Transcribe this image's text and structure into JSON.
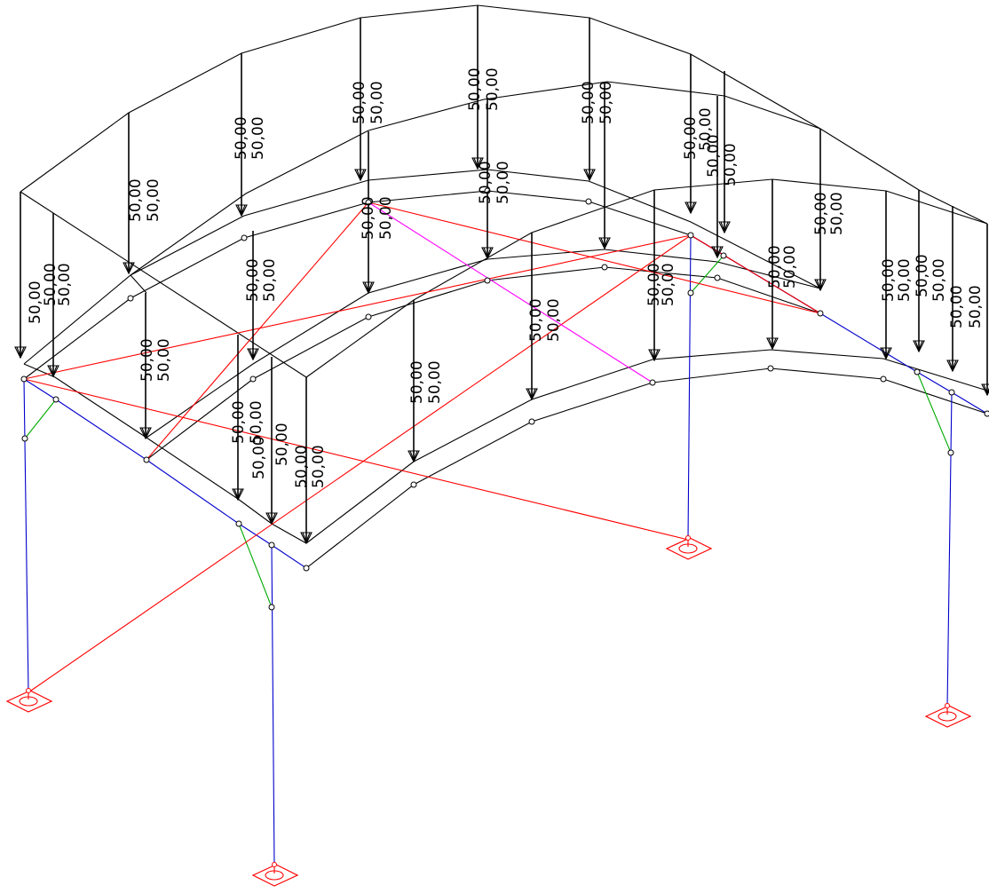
{
  "load_value": "50,00",
  "colors": {
    "roof": "#000000",
    "column": "#0000cc",
    "eave_beam": "#0000cc",
    "brace": "#ff0000",
    "knee_brace": "#00aa00",
    "diagonal": "#ff00ff",
    "support": "#ff0000"
  },
  "icons": {
    "load_arrow": "load-arrow-icon",
    "node": "node-circle-icon",
    "support": "pinned-support-icon"
  }
}
